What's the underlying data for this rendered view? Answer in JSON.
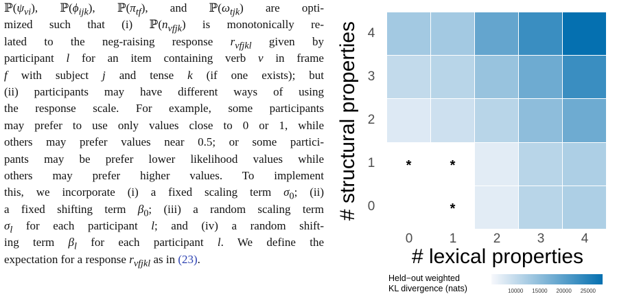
{
  "paragraph_lines": [
    {
      "html": "&#8473;(<i>&#968;</i><sub><i>vi</i></sub>), &#8473;(<i>&#981;</i><sub><i>ijk</i></sub>), &#8473;(<i>&#960;</i><sub><i>tf</i></sub>), and &#8473;(<i>&#969;</i><sub><i>tjk</i></sub>) are opti-",
      "justify": true
    },
    {
      "html": "mized such that (i) &#8473;(<i>n</i><sub><i>vfjk</i></sub>) is monotonically re-",
      "justify": true
    },
    {
      "html": "lated to the neg-raising response <i>r</i><sub><i>vfjkl</i></sub> given by",
      "justify": true
    },
    {
      "html": "participant <i>l</i> for an item containing verb <i>v</i> in frame",
      "justify": true
    },
    {
      "html": "<i>f</i> with subject <i>j</i> and tense <i>k</i> (if one exists); but",
      "justify": true
    },
    {
      "html": "(ii) participants may have different ways of using",
      "justify": true
    },
    {
      "html": "the response scale. For example, some participants",
      "justify": true
    },
    {
      "html": "may prefer to use only values close to 0 or 1, while",
      "justify": true
    },
    {
      "html": "others may prefer values near 0.5; or some partici-",
      "justify": true
    },
    {
      "html": "pants may be prefer lower likelihood values while",
      "justify": true
    },
    {
      "html": "others may prefer higher values. To implement",
      "justify": true
    },
    {
      "html": "this, we incorporate (i) a fixed scaling term <i>&#963;</i><sub>0</sub>; (ii)",
      "justify": true
    },
    {
      "html": "a fixed shifting term <i>&#946;</i><sub>0</sub>; (iii) a random scaling term",
      "justify": true
    },
    {
      "html": "<i>&#963;</i><sub><i>l</i></sub> for each participant <i>l</i>; and (iv) a random shift-",
      "justify": true
    },
    {
      "html": "ing term <i>&#946;</i><sub><i>l</i></sub> for each participant <i>l</i>. We define the",
      "justify": true
    },
    {
      "html": "expectation for a response <i>r</i><sub><i>vfjkl</i></sub> as in <span class=\"ref\">(23)</span>.",
      "justify": false
    }
  ],
  "chart_data": {
    "type": "heatmap",
    "xlabel": "# lexical properties",
    "ylabel": "# structural properties",
    "x_categories": [
      "0",
      "1",
      "2",
      "3",
      "4"
    ],
    "y_categories": [
      "0",
      "1",
      "2",
      "3",
      "4"
    ],
    "z": [
      [
        null,
        null,
        7000,
        11000,
        12000
      ],
      [
        null,
        null,
        7000,
        11000,
        12000
      ],
      [
        7500,
        9000,
        11000,
        15000,
        18000
      ],
      [
        10000,
        11000,
        14000,
        18000,
        23000
      ],
      [
        13000,
        13000,
        19000,
        23000,
        28000
      ]
    ],
    "star_cells": [
      {
        "x": "0",
        "y": "1"
      },
      {
        "x": "1",
        "y": "1"
      },
      {
        "x": "1",
        "y": "0"
      }
    ],
    "star_text": "*",
    "colorbar": {
      "title_lines": [
        "Held−out weighted",
        "KL divergence (nats)"
      ],
      "ticks": [
        10000,
        15000,
        20000,
        25000
      ],
      "tick_labels": [
        "10000",
        "15000",
        "20000",
        "25000"
      ],
      "range": [
        5000,
        28000
      ],
      "color_low": "#f7f8fc",
      "color_high": "#0570b0"
    },
    "grid": false,
    "legend_position": "bottom"
  }
}
